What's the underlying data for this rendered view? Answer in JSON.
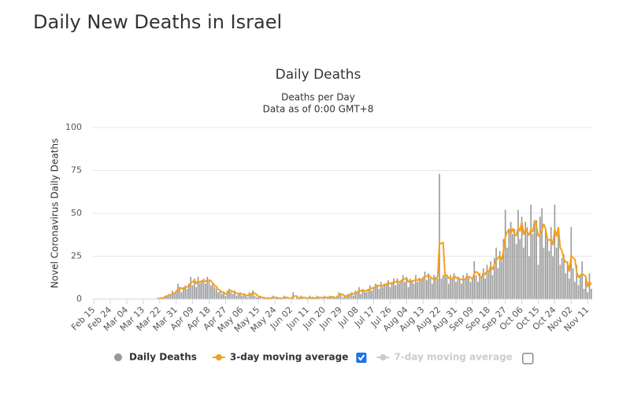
{
  "heading": "Daily New Deaths in Israel",
  "chart_data": {
    "type": "bar-line",
    "title": "Daily Deaths",
    "subtitle": "Deaths per Day",
    "note": "Data as of 0:00 GMT+8",
    "y_label": "Novel Coronavirus Daily Deaths",
    "ylim": [
      0,
      100
    ],
    "yticks": [
      0,
      25,
      50,
      75,
      100
    ],
    "grid": true,
    "categories": [
      "Feb 15",
      null,
      null,
      null,
      null,
      null,
      null,
      null,
      null,
      "Feb 24",
      null,
      null,
      null,
      null,
      null,
      null,
      null,
      null,
      "Mar 04",
      null,
      null,
      null,
      null,
      null,
      null,
      null,
      null,
      "Mar 13",
      null,
      null,
      null,
      null,
      null,
      null,
      null,
      null,
      "Mar 22",
      null,
      null,
      null,
      null,
      null,
      null,
      null,
      null,
      "Mar 31",
      null,
      null,
      null,
      null,
      null,
      null,
      null,
      null,
      "Apr 09",
      null,
      null,
      null,
      null,
      null,
      null,
      null,
      null,
      "Apr 18",
      null,
      null,
      null,
      null,
      null,
      null,
      null,
      null,
      "Apr 27",
      null,
      null,
      null,
      null,
      null,
      null,
      null,
      null,
      "May 06",
      null,
      null,
      null,
      null,
      null,
      null,
      null,
      null,
      "May 15",
      null,
      null,
      null,
      null,
      null,
      null,
      null,
      null,
      "May 24",
      null,
      null,
      null,
      null,
      null,
      null,
      null,
      null,
      "Jun 02",
      null,
      null,
      null,
      null,
      null,
      null,
      null,
      null,
      "Jun 11",
      null,
      null,
      null,
      null,
      null,
      null,
      null,
      null,
      "Jun 20",
      null,
      null,
      null,
      null,
      null,
      null,
      null,
      null,
      "Jun 29",
      null,
      null,
      null,
      null,
      null,
      null,
      null,
      null,
      "Jul 08",
      null,
      null,
      null,
      null,
      null,
      null,
      null,
      null,
      "Jul 17",
      null,
      null,
      null,
      null,
      null,
      null,
      null,
      null,
      "Jul 26",
      null,
      null,
      null,
      null,
      null,
      null,
      null,
      null,
      "Aug 04",
      null,
      null,
      null,
      null,
      null,
      null,
      null,
      null,
      "Aug 13",
      null,
      null,
      null,
      null,
      null,
      null,
      null,
      null,
      "Aug 22",
      null,
      null,
      null,
      null,
      null,
      null,
      null,
      null,
      "Aug 31",
      null,
      null,
      null,
      null,
      null,
      null,
      null,
      null,
      "Sep 09",
      null,
      null,
      null,
      null,
      null,
      null,
      null,
      null,
      "Sep 18",
      null,
      null,
      null,
      null,
      null,
      null,
      null,
      null,
      "Sep 27",
      null,
      null,
      null,
      null,
      null,
      null,
      null,
      null,
      "Oct 06",
      null,
      null,
      null,
      null,
      null,
      null,
      null,
      null,
      "Oct 15",
      null,
      null,
      null,
      null,
      null,
      null,
      null,
      null,
      "Oct 24",
      null,
      null,
      null,
      null,
      null,
      null,
      null,
      null,
      "Nov 02",
      null,
      null,
      null,
      null,
      null,
      null,
      null,
      null,
      "Nov 11",
      null,
      null
    ],
    "series": [
      {
        "name": "Daily Deaths",
        "kind": "bar",
        "color": "#999999",
        "checkbox": null,
        "values": [
          0,
          0,
          0,
          0,
          0,
          0,
          0,
          0,
          0,
          0,
          0,
          0,
          0,
          0,
          0,
          0,
          0,
          0,
          0,
          0,
          0,
          0,
          0,
          0,
          0,
          0,
          0,
          0,
          0,
          0,
          0,
          0,
          0,
          0,
          0,
          1,
          0,
          1,
          1,
          2,
          2,
          3,
          2,
          5,
          3,
          5,
          9,
          6,
          4,
          7,
          8,
          6,
          9,
          13,
          8,
          12,
          7,
          13,
          9,
          10,
          12,
          9,
          13,
          11,
          8,
          9,
          7,
          6,
          4,
          5,
          3,
          4,
          2,
          5,
          6,
          4,
          3,
          5,
          2,
          3,
          4,
          2,
          3,
          2,
          1,
          4,
          3,
          5,
          2,
          1,
          1,
          2,
          0,
          1,
          0,
          1,
          0,
          1,
          2,
          0,
          1,
          0,
          1,
          0,
          2,
          1,
          0,
          0,
          1,
          4,
          0,
          1,
          0,
          2,
          1,
          0,
          1,
          0,
          2,
          0,
          1,
          0,
          2,
          1,
          0,
          1,
          2,
          0,
          1,
          2,
          1,
          1,
          0,
          2,
          4,
          3,
          1,
          2,
          2,
          3,
          3,
          4,
          2,
          5,
          4,
          7,
          3,
          6,
          5,
          4,
          6,
          8,
          5,
          7,
          9,
          8,
          6,
          10,
          7,
          9,
          9,
          11,
          7,
          10,
          12,
          8,
          12,
          9,
          11,
          14,
          10,
          13,
          7,
          12,
          11,
          9,
          14,
          10,
          12,
          11,
          13,
          16,
          11,
          15,
          12,
          9,
          14,
          13,
          12,
          73,
          12,
          14,
          15,
          13,
          9,
          14,
          12,
          15,
          10,
          13,
          12,
          9,
          14,
          11,
          15,
          13,
          10,
          12,
          22,
          14,
          10,
          15,
          13,
          18,
          12,
          20,
          16,
          22,
          14,
          24,
          30,
          18,
          28,
          22,
          35,
          52,
          30,
          40,
          45,
          38,
          41,
          32,
          52,
          35,
          48,
          30,
          45,
          42,
          25,
          55,
          38,
          44,
          46,
          20,
          48,
          53,
          30,
          40,
          35,
          28,
          42,
          25,
          55,
          30,
          40,
          20,
          24,
          26,
          15,
          22,
          12,
          42,
          18,
          10,
          20,
          8,
          14,
          22,
          6,
          12,
          4,
          15,
          6
        ]
      },
      {
        "name": "3-day moving average",
        "kind": "line",
        "color": "#f5a11c",
        "checkbox": true,
        "values": [
          null,
          null,
          null,
          null,
          null,
          null,
          null,
          null,
          null,
          null,
          null,
          null,
          null,
          null,
          null,
          null,
          null,
          null,
          null,
          null,
          null,
          null,
          null,
          null,
          null,
          null,
          null,
          null,
          null,
          null,
          null,
          null,
          null,
          null,
          null,
          0.3,
          0.3,
          0.7,
          0.7,
          1.3,
          1.7,
          2.3,
          2.3,
          3.3,
          3.3,
          4.3,
          5.7,
          6.7,
          6.3,
          5.7,
          7,
          7,
          7.7,
          9.3,
          10,
          11,
          9,
          10.7,
          9.7,
          10.7,
          10.3,
          10.3,
          11.3,
          11,
          10.7,
          9.3,
          8,
          7.3,
          5.7,
          5,
          4,
          4,
          3,
          3.7,
          4.3,
          5,
          4.3,
          4,
          3.3,
          3.3,
          3,
          3,
          3,
          2.3,
          2,
          2.7,
          2.7,
          4,
          3.3,
          2.7,
          1.3,
          1.3,
          1,
          1,
          0.3,
          0.7,
          0.3,
          0.7,
          1,
          1,
          1,
          0.3,
          0.7,
          0.3,
          1,
          1,
          1,
          0.3,
          0.3,
          1.7,
          1.7,
          1.7,
          0.3,
          1,
          1,
          1,
          0.7,
          0.3,
          1,
          0.7,
          1,
          0.3,
          1,
          1,
          1,
          0.7,
          1,
          1,
          1,
          1,
          1.3,
          1.3,
          0.7,
          1,
          2,
          3,
          2.7,
          2,
          1.7,
          2.3,
          2.7,
          3.3,
          3,
          3.7,
          3.7,
          5.3,
          4.7,
          5.3,
          4.7,
          5,
          5,
          6,
          6.3,
          6.7,
          7,
          8,
          7.7,
          8,
          7.7,
          8.7,
          8.3,
          9.7,
          9,
          9.3,
          9.7,
          10,
          10.7,
          9.7,
          10.7,
          11.3,
          11.7,
          12.3,
          10,
          10.7,
          10,
          10.7,
          11.3,
          11,
          12,
          11,
          12,
          13.3,
          13.3,
          14,
          12.7,
          12,
          11.7,
          12,
          13,
          32.7,
          32.3,
          33,
          13.7,
          14,
          12.3,
          12,
          11.7,
          13.7,
          12.3,
          12.7,
          11.7,
          11.3,
          11.7,
          11.3,
          13.3,
          13,
          12.7,
          11.7,
          14.7,
          16,
          15.3,
          13,
          12.7,
          15.3,
          14.3,
          16.7,
          16,
          19.3,
          17.3,
          20,
          22.7,
          24,
          25.3,
          22.7,
          28.3,
          36.3,
          39,
          40.7,
          38.3,
          41,
          38,
          37,
          41.7,
          39.7,
          45,
          37.7,
          41,
          39,
          37.3,
          40.7,
          39.3,
          45.7,
          42.7,
          36.7,
          38,
          40.3,
          43.7,
          41,
          35,
          34.3,
          35,
          31.7,
          40.7,
          36.7,
          41.7,
          30,
          28,
          23.3,
          21.7,
          21,
          16.3,
          25.3,
          24,
          23.3,
          16,
          12.7,
          14,
          14.7,
          14,
          13.3,
          7.3,
          10.3,
          8.3
        ]
      },
      {
        "name": "7-day moving average",
        "kind": "line",
        "color": "#cccccc",
        "checkbox": false,
        "hidden": true
      }
    ]
  }
}
